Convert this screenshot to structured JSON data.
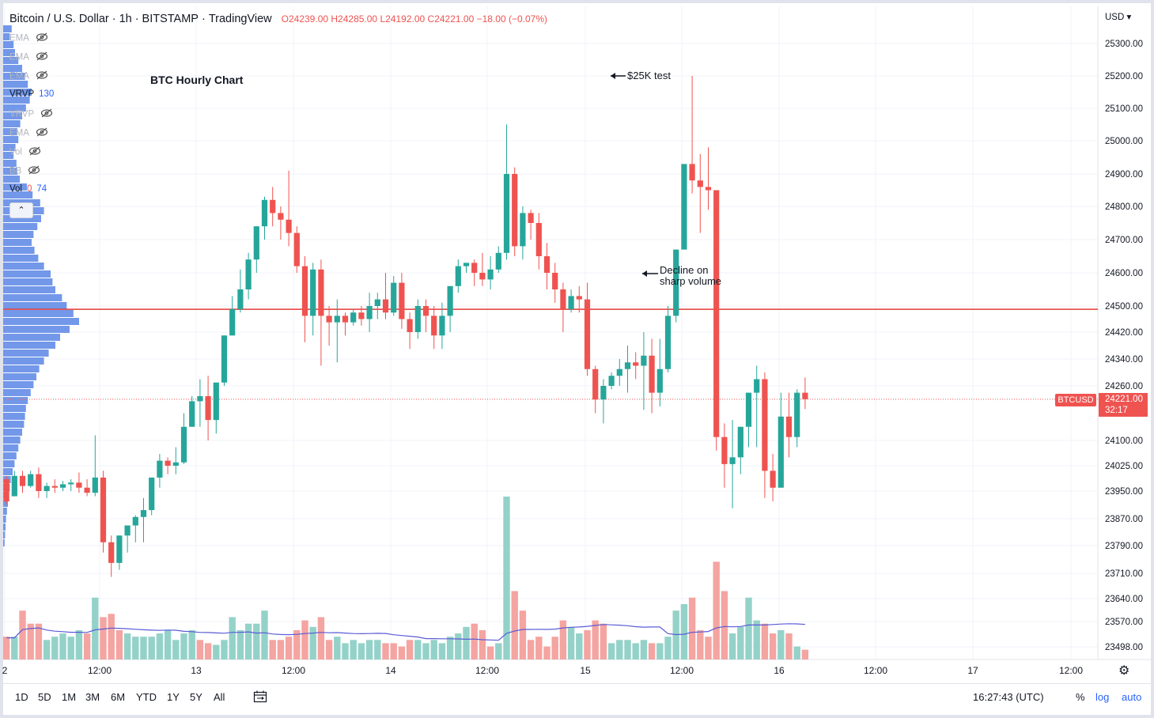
{
  "header": {
    "symbol": "Bitcoin / U.S. Dollar",
    "interval": "1h",
    "exchange": "BITSTAMP",
    "platform": "TradingView",
    "open": "O24239.00",
    "high": "H24285.00",
    "low": "L24192.00",
    "close": "C24221.00",
    "change": "−18.00 (−0.07%)"
  },
  "indicators": [
    {
      "label": "EMA",
      "value": "",
      "visible": false
    },
    {
      "label": "EMA",
      "value": "",
      "visible": false
    },
    {
      "label": "EMA",
      "value": "",
      "visible": false
    },
    {
      "label": "VRVP",
      "value": "130",
      "visible": true
    },
    {
      "label": "VRVP",
      "value": "",
      "visible": false
    },
    {
      "label": "EMA",
      "value": "",
      "visible": false
    },
    {
      "label": "Vol",
      "value": "",
      "visible": false
    },
    {
      "label": "BB",
      "value": "",
      "visible": false
    },
    {
      "label": "Vol",
      "value": "0",
      "value2": "74",
      "visible": true
    }
  ],
  "collapse_icon": "chevron-up-icon",
  "chart_title": "BTC Hourly Chart",
  "annotations": {
    "test": "$25K test",
    "decline_line1": "Decline on",
    "decline_line2": "sharp volume"
  },
  "currency": "USD ▾",
  "price_tag": {
    "symbol": "BTCUSD",
    "price": "24221.00",
    "countdown": "32:17"
  },
  "bottom_bar": {
    "ranges": [
      "1D",
      "5D",
      "1M",
      "3M",
      "6M",
      "YTD",
      "1Y",
      "5Y",
      "All"
    ],
    "compare_icon": "calendar-range-icon",
    "clock": "16:27:43 (UTC)",
    "percent": "%",
    "log": "log",
    "auto": "auto",
    "settings_icon": "gear-icon"
  },
  "chart_data": {
    "type": "candlestick",
    "colors": {
      "up": "#26a69a",
      "down": "#ef5350",
      "up_volume": "#94d2c9",
      "down_volume": "#f4a4a1",
      "ma": "#5b5bd6",
      "level": "#e53935",
      "profile": "#5b86e5"
    },
    "y_ticks": [
      "25300.00",
      "25200.00",
      "25100.00",
      "25000.00",
      "24900.00",
      "24800.00",
      "24700.00",
      "24600.00",
      "24500.00",
      "24420.00",
      "24340.00",
      "24260.00",
      "24100.00",
      "24025.00",
      "23950.00",
      "23870.00",
      "23790.00",
      "23710.00",
      "23640.00",
      "23570.00",
      "23498.00"
    ],
    "x_ticks": [
      "2",
      "12:00",
      "13",
      "12:00",
      "14",
      "12:00",
      "15",
      "12:00",
      "16",
      "12:00",
      "17",
      "12:00"
    ],
    "horizontal_level": 24490,
    "last_price": 24221,
    "candles": [
      [
        23985,
        23995,
        23920,
        23910
      ],
      [
        23935,
        24010,
        23995,
        23950
      ],
      [
        23995,
        24010,
        23965,
        23945
      ],
      [
        23965,
        24010,
        24000,
        23960
      ],
      [
        24000,
        24020,
        23950,
        23930
      ],
      [
        23950,
        23975,
        23965,
        23930
      ],
      [
        23965,
        23985,
        23960,
        23945
      ],
      [
        23960,
        23980,
        23970,
        23950
      ],
      [
        23970,
        23985,
        23975,
        23950
      ],
      [
        23975,
        24005,
        23960,
        23945
      ],
      [
        23960,
        23985,
        23945,
        23935
      ],
      [
        23945,
        24115,
        23990,
        23935
      ],
      [
        23990,
        24010,
        23800,
        23770
      ],
      [
        23800,
        23820,
        23740,
        23700
      ],
      [
        23740,
        23810,
        23820,
        23720
      ],
      [
        23820,
        23850,
        23850,
        23770
      ],
      [
        23850,
        23880,
        23875,
        23800
      ],
      [
        23875,
        23930,
        23895,
        23800
      ],
      [
        23895,
        23925,
        23990,
        23880
      ],
      [
        23990,
        24060,
        24040,
        23960
      ],
      [
        24040,
        24050,
        24025,
        24000
      ],
      [
        24025,
        24080,
        24035,
        24000
      ],
      [
        24035,
        24180,
        24140,
        24030
      ],
      [
        24140,
        24230,
        24215,
        24150
      ],
      [
        24215,
        24280,
        24230,
        24140
      ],
      [
        24230,
        24290,
        24160,
        24100
      ],
      [
        24160,
        24240,
        24270,
        24120
      ],
      [
        24270,
        24300,
        24410,
        24260
      ],
      [
        24410,
        24530,
        24490,
        24440
      ],
      [
        24490,
        24610,
        24550,
        24480
      ],
      [
        24550,
        24660,
        24640,
        24520
      ],
      [
        24640,
        24720,
        24740,
        24600
      ],
      [
        24740,
        24830,
        24820,
        24700
      ],
      [
        24820,
        24860,
        24780,
        24740
      ],
      [
        24780,
        24800,
        24760,
        24700
      ],
      [
        24760,
        24910,
        24720,
        24680
      ],
      [
        24720,
        24740,
        24620,
        24600
      ],
      [
        24620,
        24650,
        24470,
        24390
      ],
      [
        24470,
        24630,
        24610,
        24410
      ],
      [
        24610,
        24640,
        24470,
        24320
      ],
      [
        24470,
        24500,
        24450,
        24380
      ],
      [
        24450,
        24520,
        24470,
        24330
      ],
      [
        24470,
        24480,
        24450,
        24410
      ],
      [
        24450,
        24490,
        24480,
        24440
      ],
      [
        24480,
        24500,
        24460,
        24440
      ],
      [
        24460,
        24540,
        24500,
        24420
      ],
      [
        24500,
        24540,
        24520,
        24460
      ],
      [
        24520,
        24600,
        24480,
        24460
      ],
      [
        24480,
        24590,
        24570,
        24470
      ],
      [
        24570,
        24600,
        24460,
        24430
      ],
      [
        24460,
        24480,
        24420,
        24370
      ],
      [
        24420,
        24520,
        24500,
        24400
      ],
      [
        24500,
        24520,
        24470,
        24420
      ],
      [
        24470,
        24500,
        24410,
        24370
      ],
      [
        24410,
        24510,
        24470,
        24370
      ],
      [
        24470,
        24540,
        24560,
        24420
      ],
      [
        24560,
        24640,
        24620,
        24540
      ],
      [
        24620,
        24630,
        24630,
        24600
      ],
      [
        24630,
        24640,
        24600,
        24560
      ],
      [
        24600,
        24660,
        24580,
        24560
      ],
      [
        24580,
        24650,
        24610,
        24550
      ],
      [
        24610,
        24680,
        24660,
        24600
      ],
      [
        24660,
        25050,
        24900,
        24640
      ],
      [
        24900,
        24920,
        24680,
        24650
      ],
      [
        24680,
        24800,
        24780,
        24640
      ],
      [
        24780,
        24790,
        24750,
        24700
      ],
      [
        24750,
        24780,
        24650,
        24610
      ],
      [
        24650,
        24690,
        24600,
        24550
      ],
      [
        24600,
        24630,
        24550,
        24510
      ],
      [
        24550,
        24570,
        24490,
        24420
      ],
      [
        24490,
        24550,
        24530,
        24480
      ],
      [
        24530,
        24560,
        24520,
        24480
      ],
      [
        24520,
        24570,
        24310,
        24290
      ],
      [
        24310,
        24320,
        24220,
        24180
      ],
      [
        24220,
        24280,
        24260,
        24150
      ],
      [
        24260,
        24300,
        24290,
        24250
      ],
      [
        24290,
        24340,
        24310,
        24260
      ],
      [
        24310,
        24380,
        24330,
        24240
      ],
      [
        24330,
        24360,
        24320,
        24280
      ],
      [
        24320,
        24420,
        24350,
        24190
      ],
      [
        24350,
        24400,
        24240,
        24180
      ],
      [
        24240,
        24400,
        24310,
        24200
      ],
      [
        24310,
        24500,
        24470,
        24300
      ],
      [
        24470,
        24650,
        24670,
        24450
      ],
      [
        24670,
        24910,
        24930,
        24670
      ],
      [
        24930,
        25200,
        24880,
        24840
      ],
      [
        24880,
        24960,
        24860,
        24720
      ],
      [
        24860,
        24980,
        24850,
        24790
      ],
      [
        24850,
        24830,
        24110,
        24070
      ],
      [
        24110,
        24150,
        24030,
        23960
      ],
      [
        24030,
        24160,
        24050,
        23900
      ],
      [
        24050,
        24140,
        24140,
        24000
      ],
      [
        24140,
        24200,
        24240,
        24080
      ],
      [
        24240,
        24320,
        24280,
        24080
      ],
      [
        24280,
        24300,
        24010,
        23930
      ],
      [
        24010,
        24060,
        23960,
        23920
      ],
      [
        23960,
        24240,
        24170,
        23960
      ],
      [
        24170,
        24240,
        24110,
        24050
      ],
      [
        24110,
        24250,
        24240,
        24080
      ],
      [
        24240,
        24285,
        24221,
        24192
      ]
    ],
    "volumes": [
      [
        0,
        0.14
      ],
      [
        1,
        0.14
      ],
      [
        0,
        0.3
      ],
      [
        0,
        0.22
      ],
      [
        0,
        0.22
      ],
      [
        1,
        0.12
      ],
      [
        1,
        0.14
      ],
      [
        1,
        0.16
      ],
      [
        1,
        0.14
      ],
      [
        1,
        0.18
      ],
      [
        0,
        0.16
      ],
      [
        1,
        0.38
      ],
      [
        0,
        0.26
      ],
      [
        0,
        0.28
      ],
      [
        0,
        0.18
      ],
      [
        1,
        0.16
      ],
      [
        1,
        0.14
      ],
      [
        1,
        0.14
      ],
      [
        1,
        0.14
      ],
      [
        1,
        0.16
      ],
      [
        1,
        0.18
      ],
      [
        1,
        0.12
      ],
      [
        1,
        0.16
      ],
      [
        1,
        0.18
      ],
      [
        0,
        0.12
      ],
      [
        0,
        0.1
      ],
      [
        1,
        0.09
      ],
      [
        1,
        0.12
      ],
      [
        1,
        0.26
      ],
      [
        1,
        0.18
      ],
      [
        1,
        0.22
      ],
      [
        1,
        0.22
      ],
      [
        1,
        0.3
      ],
      [
        0,
        0.12
      ],
      [
        0,
        0.12
      ],
      [
        0,
        0.14
      ],
      [
        0,
        0.18
      ],
      [
        0,
        0.24
      ],
      [
        1,
        0.2
      ],
      [
        0,
        0.26
      ],
      [
        0,
        0.12
      ],
      [
        1,
        0.14
      ],
      [
        1,
        0.1
      ],
      [
        1,
        0.12
      ],
      [
        1,
        0.1
      ],
      [
        1,
        0.12
      ],
      [
        1,
        0.12
      ],
      [
        0,
        0.1
      ],
      [
        0,
        0.1
      ],
      [
        0,
        0.08
      ],
      [
        0,
        0.12
      ],
      [
        1,
        0.12
      ],
      [
        1,
        0.1
      ],
      [
        1,
        0.12
      ],
      [
        1,
        0.1
      ],
      [
        1,
        0.14
      ],
      [
        1,
        0.16
      ],
      [
        1,
        0.2
      ],
      [
        0,
        0.22
      ],
      [
        0,
        0.18
      ],
      [
        0,
        0.08
      ],
      [
        1,
        0.1
      ],
      [
        1,
        1.0
      ],
      [
        0,
        0.42
      ],
      [
        0,
        0.3
      ],
      [
        0,
        0.12
      ],
      [
        0,
        0.14
      ],
      [
        0,
        0.08
      ],
      [
        0,
        0.14
      ],
      [
        0,
        0.24
      ],
      [
        1,
        0.2
      ],
      [
        1,
        0.16
      ],
      [
        0,
        0.18
      ],
      [
        0,
        0.24
      ],
      [
        0,
        0.22
      ],
      [
        1,
        0.1
      ],
      [
        1,
        0.12
      ],
      [
        1,
        0.12
      ],
      [
        1,
        0.1
      ],
      [
        1,
        0.12
      ],
      [
        0,
        0.1
      ],
      [
        1,
        0.1
      ],
      [
        1,
        0.14
      ],
      [
        1,
        0.3
      ],
      [
        1,
        0.34
      ],
      [
        0,
        0.38
      ],
      [
        0,
        0.18
      ],
      [
        0,
        0.14
      ],
      [
        0,
        0.6
      ],
      [
        0,
        0.42
      ],
      [
        1,
        0.16
      ],
      [
        1,
        0.2
      ],
      [
        1,
        0.38
      ],
      [
        1,
        0.24
      ],
      [
        0,
        0.22
      ],
      [
        0,
        0.16
      ],
      [
        1,
        0.18
      ],
      [
        0,
        0.16
      ],
      [
        1,
        0.08
      ],
      [
        0,
        0.06
      ]
    ],
    "volume_profile": [
      [
        25,
        18
      ],
      [
        35,
        14
      ],
      [
        45,
        22
      ],
      [
        55,
        25
      ],
      [
        65,
        32
      ],
      [
        75,
        40
      ],
      [
        85,
        46
      ],
      [
        95,
        52
      ],
      [
        105,
        60
      ],
      [
        115,
        56
      ],
      [
        125,
        48
      ],
      [
        135,
        40
      ],
      [
        145,
        36
      ],
      [
        155,
        30
      ],
      [
        165,
        32
      ],
      [
        175,
        26
      ],
      [
        185,
        22
      ],
      [
        195,
        28
      ],
      [
        205,
        30
      ],
      [
        215,
        35
      ],
      [
        225,
        50
      ],
      [
        235,
        62
      ],
      [
        245,
        78
      ],
      [
        255,
        86
      ],
      [
        265,
        80
      ],
      [
        275,
        72
      ],
      [
        285,
        64
      ],
      [
        295,
        60
      ],
      [
        305,
        66
      ],
      [
        315,
        74
      ],
      [
        325,
        86
      ],
      [
        335,
        100
      ],
      [
        345,
        104
      ],
      [
        355,
        110
      ],
      [
        365,
        124
      ],
      [
        375,
        134
      ],
      [
        385,
        148
      ],
      [
        395,
        160
      ],
      [
        405,
        140
      ],
      [
        415,
        120
      ],
      [
        425,
        110
      ],
      [
        435,
        96
      ],
      [
        445,
        86
      ],
      [
        455,
        76
      ],
      [
        465,
        70
      ],
      [
        475,
        64
      ],
      [
        485,
        58
      ],
      [
        495,
        52
      ],
      [
        505,
        48
      ],
      [
        515,
        46
      ],
      [
        525,
        44
      ],
      [
        535,
        40
      ],
      [
        545,
        36
      ],
      [
        555,
        32
      ],
      [
        565,
        28
      ],
      [
        575,
        24
      ],
      [
        585,
        20
      ],
      [
        595,
        16
      ],
      [
        605,
        14
      ],
      [
        615,
        12
      ],
      [
        625,
        10
      ],
      [
        635,
        8
      ],
      [
        645,
        6
      ],
      [
        655,
        5
      ],
      [
        665,
        4
      ],
      [
        675,
        3
      ]
    ]
  }
}
